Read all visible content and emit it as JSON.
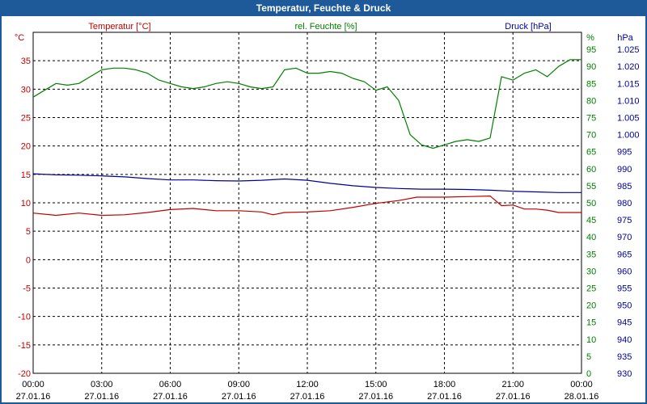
{
  "window": {
    "title": "Temperatur, Feuchte & Druck"
  },
  "chart_data": {
    "type": "line",
    "title": "Temperatur, Feuchte & Druck",
    "grid": true,
    "x_ticks": [
      {
        "time": "00:00",
        "date": "27.01.16"
      },
      {
        "time": "03:00",
        "date": "27.01.16"
      },
      {
        "time": "06:00",
        "date": "27.01.16"
      },
      {
        "time": "09:00",
        "date": "27.01.16"
      },
      {
        "time": "12:00",
        "date": "27.01.16"
      },
      {
        "time": "15:00",
        "date": "27.01.16"
      },
      {
        "time": "18:00",
        "date": "27.01.16"
      },
      {
        "time": "21:00",
        "date": "27.01.16"
      },
      {
        "time": "00:00",
        "date": "28.01.16"
      }
    ],
    "axes": {
      "temperature": {
        "label": "Temperatur [°C]",
        "unit": "°C",
        "color": "#c00000",
        "position": "left",
        "range": [
          -20,
          40
        ],
        "ticks": [
          "-20",
          "-15",
          "-10",
          "-5",
          "0",
          "5",
          "10",
          "15",
          "20",
          "25",
          "30",
          "35"
        ]
      },
      "humidity": {
        "label": "rel. Feuchte [%]",
        "unit": "%",
        "color": "#008000",
        "position": "right-inner",
        "range": [
          0,
          100
        ],
        "ticks": [
          "0",
          "5",
          "10",
          "15",
          "20",
          "25",
          "30",
          "35",
          "40",
          "45",
          "50",
          "55",
          "60",
          "65",
          "70",
          "75",
          "80",
          "85",
          "90",
          "95"
        ]
      },
      "pressure": {
        "label": "Druck [hPa]",
        "unit": "hPa",
        "color": "#000099",
        "position": "right-outer",
        "range": [
          930,
          1030
        ],
        "ticks": [
          "930",
          "935",
          "940",
          "945",
          "950",
          "955",
          "960",
          "965",
          "970",
          "975",
          "980",
          "985",
          "990",
          "995",
          "1.000",
          "1.005",
          "1.010",
          "1.015",
          "1.020",
          "1.025"
        ]
      }
    },
    "series": [
      {
        "name": "Temperatur [°C]",
        "axis": "temperature",
        "color": "#c00000",
        "points": [
          [
            0,
            8.2
          ],
          [
            1,
            7.8
          ],
          [
            2,
            8.2
          ],
          [
            3,
            7.8
          ],
          [
            4,
            7.9
          ],
          [
            5,
            8.3
          ],
          [
            6,
            8.8
          ],
          [
            7,
            9.0
          ],
          [
            8,
            8.6
          ],
          [
            9,
            8.6
          ],
          [
            10,
            8.4
          ],
          [
            10.5,
            7.9
          ],
          [
            11,
            8.3
          ],
          [
            12,
            8.4
          ],
          [
            13,
            8.6
          ],
          [
            14,
            9.2
          ],
          [
            15,
            9.9
          ],
          [
            16,
            10.4
          ],
          [
            16.8,
            11.0
          ],
          [
            18,
            11.0
          ],
          [
            19,
            11.1
          ],
          [
            20,
            11.2
          ],
          [
            20.5,
            9.5
          ],
          [
            21,
            9.6
          ],
          [
            21.5,
            8.9
          ],
          [
            22,
            8.9
          ],
          [
            22.5,
            8.7
          ],
          [
            23,
            8.3
          ],
          [
            24,
            8.3
          ]
        ]
      },
      {
        "name": "rel. Feuchte [%]",
        "axis": "humidity",
        "color": "#008000",
        "points": [
          [
            0,
            81
          ],
          [
            0.5,
            83
          ],
          [
            1,
            85
          ],
          [
            1.5,
            84.5
          ],
          [
            2,
            85
          ],
          [
            2.5,
            87
          ],
          [
            3,
            89
          ],
          [
            3.5,
            89.5
          ],
          [
            4,
            89.5
          ],
          [
            4.5,
            89
          ],
          [
            5,
            88
          ],
          [
            5.5,
            86
          ],
          [
            6,
            85
          ],
          [
            6.5,
            84
          ],
          [
            7,
            83.5
          ],
          [
            7.5,
            84
          ],
          [
            8,
            85
          ],
          [
            8.5,
            85.5
          ],
          [
            9,
            85
          ],
          [
            9.5,
            84
          ],
          [
            10,
            83.5
          ],
          [
            10.5,
            84
          ],
          [
            11,
            89
          ],
          [
            11.5,
            89.5
          ],
          [
            12,
            88
          ],
          [
            12.5,
            88
          ],
          [
            13,
            88.5
          ],
          [
            13.5,
            88
          ],
          [
            14,
            86.5
          ],
          [
            14.5,
            85.5
          ],
          [
            15,
            83
          ],
          [
            15.5,
            84
          ],
          [
            16,
            80
          ],
          [
            16.5,
            70
          ],
          [
            17,
            67
          ],
          [
            17.5,
            66
          ],
          [
            18,
            67
          ],
          [
            18.5,
            68
          ],
          [
            19,
            68.5
          ],
          [
            19.5,
            68
          ],
          [
            20,
            69
          ],
          [
            20.5,
            87
          ],
          [
            21,
            86
          ],
          [
            21.5,
            88
          ],
          [
            22,
            89
          ],
          [
            22.5,
            87
          ],
          [
            23,
            90
          ],
          [
            23.5,
            92
          ],
          [
            24,
            92
          ]
        ]
      },
      {
        "name": "Druck [hPa]",
        "axis": "pressure",
        "color": "#000099",
        "points": [
          [
            0,
            988.5
          ],
          [
            1,
            988.2
          ],
          [
            2,
            988.1
          ],
          [
            3,
            987.9
          ],
          [
            4,
            987.6
          ],
          [
            5,
            987.1
          ],
          [
            6,
            986.7
          ],
          [
            7,
            986.7
          ],
          [
            8,
            986.5
          ],
          [
            9,
            986.4
          ],
          [
            10,
            986.6
          ],
          [
            11,
            987.0
          ],
          [
            12,
            986.6
          ],
          [
            13,
            985.7
          ],
          [
            14,
            985.0
          ],
          [
            15,
            984.5
          ],
          [
            16,
            984.2
          ],
          [
            17,
            984.0
          ],
          [
            18,
            984.0
          ],
          [
            19,
            983.9
          ],
          [
            20,
            983.7
          ],
          [
            21,
            983.4
          ],
          [
            22,
            983.2
          ],
          [
            23,
            983.0
          ],
          [
            24,
            983.0
          ]
        ]
      }
    ]
  }
}
